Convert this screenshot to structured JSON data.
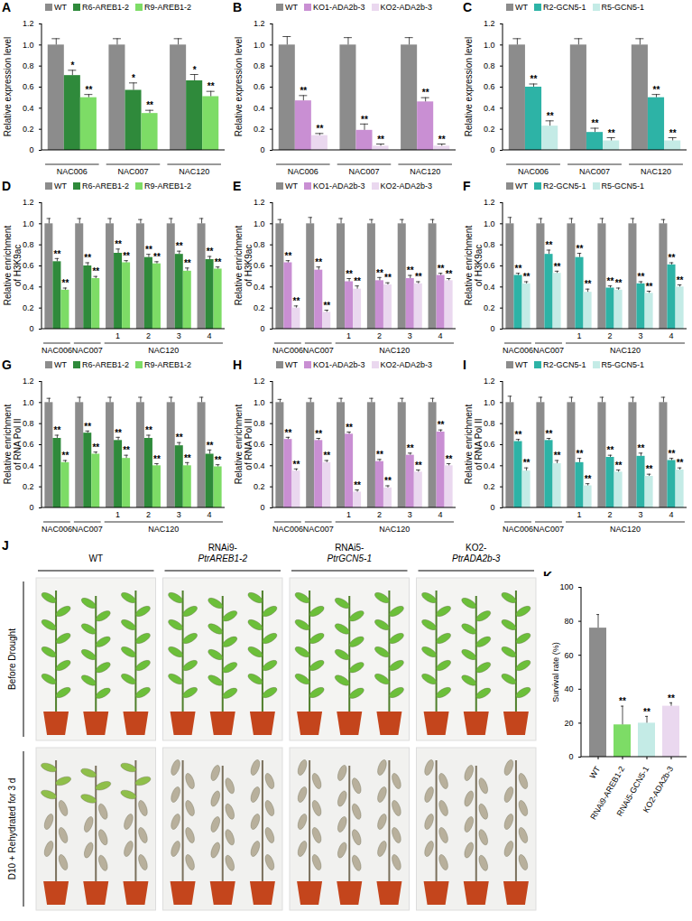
{
  "chart_data": [
    {
      "panel": "A",
      "type": "bar",
      "ylabel": "Relative expression level",
      "legend": "top-left",
      "categories": [
        "NAC006",
        "NAC007",
        "NAC120"
      ],
      "ylim": [
        0,
        1.2
      ],
      "yticks": [
        0,
        0.2,
        0.4,
        0.6,
        0.8,
        {
          "value": 1,
          "label": "1.0"
        },
        1.2
      ],
      "series": [
        {
          "name": "WT",
          "color": "#8c8c8c",
          "values": [
            1,
            1,
            1
          ],
          "errors": [
            0.06,
            0.06,
            0.06
          ]
        },
        {
          "name": "R6-AREB1-2",
          "color": "#2f8a3b",
          "values": [
            0.71,
            0.57,
            0.66
          ],
          "errors": [
            0.05,
            0.07,
            0.06
          ],
          "annotations": [
            "*",
            "*",
            "*"
          ]
        },
        {
          "name": "R9-AREB1-2",
          "color": "#7ddc66",
          "values": [
            0.5,
            0.35,
            0.51
          ],
          "errors": [
            0.03,
            0.03,
            0.05
          ],
          "annotations": [
            "**",
            "**",
            "**"
          ]
        }
      ]
    },
    {
      "panel": "B",
      "type": "bar",
      "ylabel": "Relative expression level",
      "legend": "top-left",
      "categories": [
        "NAC006",
        "NAC007",
        "NAC120"
      ],
      "ylim": [
        0,
        1.2
      ],
      "yticks": [
        0,
        0.2,
        0.4,
        0.6,
        0.8,
        {
          "value": 1,
          "label": "1.0"
        },
        1.2
      ],
      "series": [
        {
          "name": "WT",
          "color": "#8c8c8c",
          "values": [
            1,
            1,
            1
          ],
          "errors": [
            0.08,
            0.07,
            0.07
          ]
        },
        {
          "name": "KO1-ADA2b-3",
          "color": "#c98fd3",
          "values": [
            0.47,
            0.19,
            0.46
          ],
          "errors": [
            0.05,
            0.06,
            0.04
          ],
          "annotations": [
            "**",
            "**",
            "**"
          ]
        },
        {
          "name": "KO2-ADA2b-3",
          "color": "#ead8ef",
          "values": [
            0.14,
            0.04,
            0.04
          ],
          "errors": [
            0.02,
            0.02,
            0.02
          ],
          "annotations": [
            "**",
            "**",
            "**"
          ]
        }
      ]
    },
    {
      "panel": "C",
      "type": "bar",
      "ylabel": "Relative expression level",
      "legend": "top-left",
      "categories": [
        "NAC006",
        "NAC007",
        "NAC120"
      ],
      "ylim": [
        0,
        1.2
      ],
      "yticks": [
        0,
        0.2,
        0.4,
        0.6,
        0.8,
        {
          "value": 1,
          "label": "1.0"
        },
        1.2
      ],
      "series": [
        {
          "name": "WT",
          "color": "#8c8c8c",
          "values": [
            1,
            1,
            1
          ],
          "errors": [
            0.06,
            0.06,
            0.06
          ]
        },
        {
          "name": "R2-GCN5-1",
          "color": "#2db3a6",
          "values": [
            0.6,
            0.17,
            0.5
          ],
          "errors": [
            0.03,
            0.04,
            0.03
          ],
          "annotations": [
            "**",
            "**",
            "**"
          ]
        },
        {
          "name": "R5-GCN5-1",
          "color": "#c4ebe6",
          "values": [
            0.23,
            0.09,
            0.09
          ],
          "errors": [
            0.05,
            0.03,
            0.03
          ],
          "annotations": [
            "**",
            "**",
            "**"
          ]
        }
      ]
    },
    {
      "panel": "D",
      "type": "bar",
      "ylabel": "Relative enrichment\nof H3K9ac",
      "legend": "top-left",
      "categories": [
        "NAC006",
        "NAC007",
        "1",
        "2",
        "3",
        "4"
      ],
      "group_labels": [
        {
          "label": "NAC120",
          "from": 2,
          "to": 5
        }
      ],
      "ylim": [
        0,
        1.2
      ],
      "yticks": [
        0,
        0.2,
        0.4,
        0.6,
        0.8,
        {
          "value": 1,
          "label": "1.0"
        },
        1.2
      ],
      "series": [
        {
          "name": "WT",
          "color": "#8c8c8c",
          "values": [
            1,
            1,
            1,
            1,
            1,
            1
          ],
          "errors": [
            0.05,
            0.05,
            0.05,
            0.04,
            0.05,
            0.05
          ]
        },
        {
          "name": "R6-AREB1-2",
          "color": "#2f8a3b",
          "values": [
            0.64,
            0.6,
            0.72,
            0.68,
            0.71,
            0.66
          ],
          "errors": [
            0.03,
            0.03,
            0.04,
            0.03,
            0.03,
            0.03
          ],
          "annotations": [
            "**",
            "**",
            "**",
            "**",
            "**",
            "**"
          ]
        },
        {
          "name": "R9-AREB1-2",
          "color": "#7ddc66",
          "values": [
            0.37,
            0.48,
            0.63,
            0.62,
            0.55,
            0.57
          ],
          "errors": [
            0.02,
            0.02,
            0.02,
            0.02,
            0.03,
            0.02
          ],
          "annotations": [
            "**",
            "**",
            "**",
            "**",
            "**",
            "**"
          ]
        }
      ]
    },
    {
      "panel": "E",
      "type": "bar",
      "ylabel": "Relative enrichment\nof H3K9ac",
      "legend": "top-left",
      "categories": [
        "NAC006",
        "NAC007",
        "1",
        "2",
        "3",
        "4"
      ],
      "group_labels": [
        {
          "label": "NAC120",
          "from": 2,
          "to": 5
        }
      ],
      "ylim": [
        0,
        1.2
      ],
      "yticks": [
        0,
        0.2,
        0.4,
        0.6,
        0.8,
        {
          "value": 1,
          "label": "1.0"
        },
        1.2
      ],
      "series": [
        {
          "name": "WT",
          "color": "#8c8c8c",
          "values": [
            1,
            1,
            1,
            1,
            1,
            1
          ],
          "errors": [
            0.04,
            0.06,
            0.05,
            0.04,
            0.04,
            0.04
          ]
        },
        {
          "name": "KO1-ADA2b-3",
          "color": "#c98fd3",
          "values": [
            0.63,
            0.56,
            0.45,
            0.46,
            0.48,
            0.51
          ],
          "errors": [
            0.02,
            0.03,
            0.03,
            0.03,
            0.03,
            0.02
          ],
          "annotations": [
            "**",
            "**",
            "**",
            "**",
            "**",
            "**"
          ]
        },
        {
          "name": "KO2-ADA2b-3",
          "color": "#ead8ef",
          "values": [
            0.2,
            0.16,
            0.38,
            0.42,
            0.43,
            0.46
          ],
          "errors": [
            0.02,
            0.02,
            0.03,
            0.02,
            0.02,
            0.02
          ],
          "annotations": [
            "**",
            "**",
            "**",
            "**",
            "**",
            "**"
          ]
        }
      ]
    },
    {
      "panel": "F",
      "type": "bar",
      "ylabel": "Relative enrichment\nof H3K9ac",
      "legend": "top-left",
      "categories": [
        "NAC006",
        "NAC007",
        "1",
        "2",
        "3",
        "4"
      ],
      "group_labels": [
        {
          "label": "NAC120",
          "from": 2,
          "to": 5
        }
      ],
      "ylim": [
        0,
        1.2
      ],
      "yticks": [
        0,
        0.2,
        0.4,
        0.6,
        0.8,
        {
          "value": 1,
          "label": "1.0"
        },
        1.2
      ],
      "series": [
        {
          "name": "WT",
          "color": "#8c8c8c",
          "values": [
            1,
            1,
            1,
            1,
            1,
            1
          ],
          "errors": [
            0.06,
            0.05,
            0.05,
            0.05,
            0.05,
            0.04
          ]
        },
        {
          "name": "R2-GCN5-1",
          "color": "#2db3a6",
          "values": [
            0.51,
            0.71,
            0.68,
            0.39,
            0.43,
            0.61
          ],
          "errors": [
            0.02,
            0.04,
            0.04,
            0.02,
            0.02,
            0.02
          ],
          "annotations": [
            "**",
            "**",
            "**",
            "**",
            "**",
            "**"
          ]
        },
        {
          "name": "R5-GCN5-1",
          "color": "#c4ebe6",
          "values": [
            0.43,
            0.53,
            0.35,
            0.37,
            0.34,
            0.4
          ],
          "errors": [
            0.02,
            0.02,
            0.03,
            0.02,
            0.02,
            0.02
          ],
          "annotations": [
            "**",
            "**",
            "**",
            "**",
            "**",
            "**"
          ]
        }
      ]
    },
    {
      "panel": "G",
      "type": "bar",
      "ylabel": "Relative enrichment\nof RNA Pol II",
      "legend": "top-left",
      "categories": [
        "NAC006",
        "NAC007",
        "1",
        "2",
        "3",
        "4"
      ],
      "group_labels": [
        {
          "label": "NAC120",
          "from": 2,
          "to": 5
        }
      ],
      "ylim": [
        0,
        1.2
      ],
      "yticks": [
        0,
        0.2,
        0.4,
        0.6,
        0.8,
        {
          "value": 1,
          "label": "1.0"
        },
        1.2
      ],
      "series": [
        {
          "name": "WT",
          "color": "#8c8c8c",
          "values": [
            1,
            1,
            1,
            1,
            1,
            1
          ],
          "errors": [
            0.04,
            0.05,
            0.05,
            0.05,
            0.05,
            0.05
          ]
        },
        {
          "name": "R6-AREB1-2",
          "color": "#2f8a3b",
          "values": [
            0.66,
            0.71,
            0.64,
            0.66,
            0.59,
            0.51
          ],
          "errors": [
            0.03,
            0.02,
            0.03,
            0.03,
            0.03,
            0.04
          ],
          "annotations": [
            "**",
            "**",
            "**",
            "**",
            "**",
            "**"
          ]
        },
        {
          "name": "R9-AREB1-2",
          "color": "#7ddc66",
          "values": [
            0.43,
            0.51,
            0.47,
            0.4,
            0.4,
            0.39
          ],
          "errors": [
            0.02,
            0.02,
            0.03,
            0.02,
            0.03,
            0.02
          ],
          "annotations": [
            "**",
            "**",
            "**",
            "**",
            "**",
            "**"
          ]
        }
      ]
    },
    {
      "panel": "H",
      "type": "bar",
      "ylabel": "Relative enrichment\nof RNA Pol II",
      "legend": "top-left",
      "categories": [
        "NAC006",
        "NAC007",
        "1",
        "2",
        "3",
        "4"
      ],
      "group_labels": [
        {
          "label": "NAC120",
          "from": 2,
          "to": 5
        }
      ],
      "ylim": [
        0,
        1.2
      ],
      "yticks": [
        0,
        0.2,
        0.4,
        0.6,
        0.8,
        {
          "value": 1,
          "label": "1.0"
        },
        1.2
      ],
      "series": [
        {
          "name": "WT",
          "color": "#8c8c8c",
          "values": [
            1,
            1,
            1,
            1,
            1,
            1
          ],
          "errors": [
            0.03,
            0.04,
            0.04,
            0.04,
            0.04,
            0.04
          ]
        },
        {
          "name": "KO1-ADA2b-3",
          "color": "#c98fd3",
          "values": [
            0.65,
            0.64,
            0.7,
            0.44,
            0.5,
            0.72
          ],
          "errors": [
            0.02,
            0.02,
            0.02,
            0.02,
            0.02,
            0.02
          ],
          "annotations": [
            "**",
            "**",
            "**",
            "**",
            "**",
            "**"
          ]
        },
        {
          "name": "KO2-ADA2b-3",
          "color": "#ead8ef",
          "values": [
            0.35,
            0.43,
            0.15,
            0.19,
            0.34,
            0.4
          ],
          "errors": [
            0.02,
            0.02,
            0.02,
            0.02,
            0.02,
            0.02
          ],
          "annotations": [
            "**",
            "**",
            "**",
            "**",
            "**",
            "**"
          ]
        }
      ]
    },
    {
      "panel": "I",
      "type": "bar",
      "ylabel": "Relative enrichment\nof RNA Pol II",
      "legend": "top-left",
      "categories": [
        "NAC006",
        "NAC007",
        "1",
        "2",
        "3",
        "4"
      ],
      "group_labels": [
        {
          "label": "NAC120",
          "from": 2,
          "to": 5
        }
      ],
      "ylim": [
        0,
        1.2
      ],
      "yticks": [
        0,
        0.2,
        0.4,
        0.6,
        0.8,
        {
          "value": 1,
          "label": "1.0"
        },
        1.2
      ],
      "series": [
        {
          "name": "WT",
          "color": "#8c8c8c",
          "values": [
            1,
            1,
            1,
            1,
            1,
            1
          ],
          "errors": [
            0.06,
            0.05,
            0.05,
            0.05,
            0.05,
            0.05
          ]
        },
        {
          "name": "R2-GCN5-1",
          "color": "#2db3a6",
          "values": [
            0.63,
            0.64,
            0.43,
            0.48,
            0.49,
            0.45
          ],
          "errors": [
            0.02,
            0.02,
            0.04,
            0.02,
            0.03,
            0.02
          ],
          "annotations": [
            "**",
            "**",
            "**",
            "**",
            "**",
            "**"
          ]
        },
        {
          "name": "R5-GCN5-1",
          "color": "#c4ebe6",
          "values": [
            0.35,
            0.42,
            0.21,
            0.34,
            0.3,
            0.36
          ],
          "errors": [
            0.03,
            0.03,
            0.02,
            0.02,
            0.02,
            0.02
          ],
          "annotations": [
            "**",
            "**",
            "**",
            "**",
            "**",
            "**"
          ]
        }
      ]
    },
    {
      "panel": "J",
      "type": "photo",
      "columns": [
        "WT",
        "RNAi9-PtrAREB1-2",
        "RNAi5-PtrGCN5-1",
        "KO2-PtrADA2b-3"
      ],
      "rows": [
        "Before Drought",
        "D10 + Rehydrated for 3 d"
      ]
    },
    {
      "panel": "K",
      "type": "bar",
      "ylabel": "Survival rate (%)",
      "categories": [
        "WT",
        "RNAi9-AREB1-2",
        "RNAi5-GCN5-1",
        "KO2-ADA2b-3"
      ],
      "values": [
        76,
        19,
        20,
        30
      ],
      "errors": [
        8,
        11,
        4,
        2
      ],
      "annotations": [
        null,
        "**",
        "**",
        "**"
      ],
      "colors": [
        "#8c8c8c",
        "#7ddc66",
        "#c4ebe6",
        "#ead8ef"
      ],
      "ylim": [
        0,
        100
      ],
      "yticks": [
        0,
        20,
        40,
        60,
        80,
        100
      ]
    }
  ]
}
